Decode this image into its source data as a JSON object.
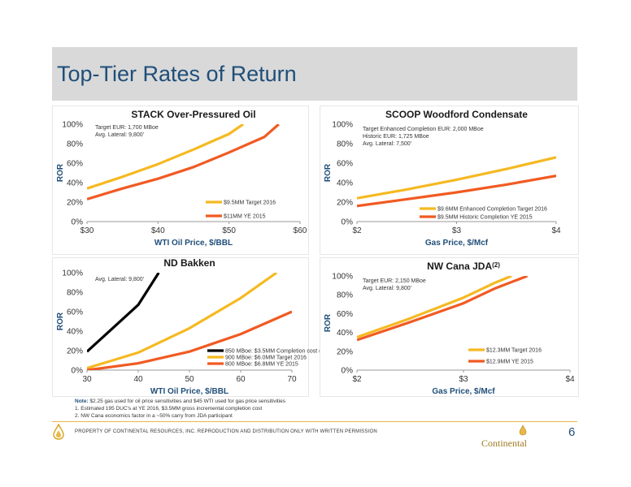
{
  "page": {
    "title": "Top-Tier Rates of Return",
    "page_number": "6",
    "property_notice": "PROPERTY OF CONTINENTAL RESOURCES, INC. REPRODUCTION AND DISTRIBUTION ONLY WITH WRITTEN PERMISSION",
    "logo_text": "Continental"
  },
  "footnotes": {
    "note_label": "Note:",
    "note_text": " $2.25 gas used for oil price sensitivities and $45 WTI used for gas price sensitivities",
    "items": [
      "1. Estimated 195 DUC's at YE 2016, $3.5MM gross incremental completion cost",
      "2. NW Cana economics factor in a ~50% carry from JDA participant"
    ]
  },
  "colors": {
    "gold": "#f5b921",
    "orange": "#f15a22",
    "black": "#000000",
    "title": "#1f4e79"
  },
  "chart_data": [
    {
      "type": "line",
      "title": "STACK Over-Pressured Oil",
      "xlabel": "WTI Oil Price, $/BBL",
      "ylabel": "ROR",
      "xlim": [
        30,
        60
      ],
      "ylim": [
        0,
        100
      ],
      "x_ticks": [
        "$30",
        "$40",
        "$50",
        "$60"
      ],
      "y_ticks": [
        "0%",
        "20%",
        "40%",
        "60%",
        "80%",
        "100%"
      ],
      "notes": [
        "Target EUR: 1,700 MBoe",
        "Avg. Lateral: 9,800'"
      ],
      "legend": [
        "$9.5MM Target 2016",
        "$11MM YE 2015"
      ],
      "series": [
        {
          "name": "$9.5MM Target 2016",
          "color": "#f5b921",
          "x": [
            30,
            35,
            40,
            45,
            50,
            52
          ],
          "y": [
            34,
            46,
            59,
            74,
            90,
            100
          ]
        },
        {
          "name": "$11MM YE 2015",
          "color": "#f15a22",
          "x": [
            30,
            35,
            40,
            45,
            50,
            55,
            57
          ],
          "y": [
            23,
            34,
            44,
            56,
            71,
            87,
            100
          ]
        }
      ]
    },
    {
      "type": "line",
      "title": "SCOOP Woodford Condensate",
      "xlabel": "Gas Price, $/Mcf",
      "ylabel": "ROR",
      "xlim": [
        2,
        4
      ],
      "ylim": [
        0,
        100
      ],
      "x_ticks": [
        "$2",
        "$3",
        "$4"
      ],
      "y_ticks": [
        "0%",
        "20%",
        "40%",
        "60%",
        "80%",
        "100%"
      ],
      "notes": [
        "Target Enhanced Completion EUR: 2,000 MBoe",
        "Historic EUR: 1,725 MBoe",
        "Avg. Lateral: 7,500'"
      ],
      "legend": [
        "$9.6MM Enhanced Completion Target 2016",
        "$9.5MM Historic Completion YE 2015"
      ],
      "series": [
        {
          "name": "$9.6MM Enhanced Completion Target 2016",
          "color": "#f5b921",
          "x": [
            2,
            2.5,
            3,
            3.5,
            4
          ],
          "y": [
            24,
            33,
            43,
            54,
            66
          ]
        },
        {
          "name": "$9.5MM Historic Completion YE 2015",
          "color": "#f15a22",
          "x": [
            2,
            2.5,
            3,
            3.5,
            4
          ],
          "y": [
            16,
            23,
            30,
            38,
            47
          ]
        }
      ]
    },
    {
      "type": "line",
      "title": "ND Bakken",
      "xlabel": "WTI Oil Price, $/BBL",
      "ylabel": "ROR",
      "xlim": [
        30,
        70
      ],
      "ylim": [
        0,
        100
      ],
      "x_ticks": [
        "30",
        "40",
        "50",
        "60",
        "70"
      ],
      "y_ticks": [
        "0%",
        "20%",
        "40%",
        "60%",
        "80%",
        "100%"
      ],
      "notes": [
        "Avg. Lateral: 9,800'"
      ],
      "legend": [
        "850 MBoe: $3.5MM Completion cost (1)",
        "900 MBoe: $6.0MM Target 2016",
        "800 MBoe: $6.8MM YE 2015"
      ],
      "series": [
        {
          "name": "850 MBoe: $3.5MM Completion cost (1)",
          "color": "#000000",
          "x": [
            30,
            40,
            44
          ],
          "y": [
            19,
            67,
            100
          ]
        },
        {
          "name": "900 MBoe: $6.0MM Target 2016",
          "color": "#f5b921",
          "x": [
            30,
            40,
            50,
            60,
            67
          ],
          "y": [
            2,
            18,
            43,
            74,
            100
          ]
        },
        {
          "name": "800 MBoe: $6.8MM YE 2015",
          "color": "#f15a22",
          "x": [
            30,
            40,
            50,
            60,
            70
          ],
          "y": [
            0,
            7,
            19,
            37,
            60
          ]
        }
      ]
    },
    {
      "type": "line",
      "title": "NW Cana JDA",
      "title_sup": "(2)",
      "xlabel": "Gas Price, $/Mcf",
      "ylabel": "ROR",
      "xlim": [
        2,
        4
      ],
      "ylim": [
        0,
        100
      ],
      "x_ticks": [
        "$2",
        "$3",
        "$4"
      ],
      "y_ticks": [
        "0%",
        "20%",
        "40%",
        "60%",
        "80%",
        "100%"
      ],
      "notes": [
        "Target EUR: 2,150 MBoe",
        "Avg. Lateral: 9,800'"
      ],
      "legend": [
        "$12.3MM Target 2016",
        "$12.9MM YE 2015"
      ],
      "series": [
        {
          "name": "$12.3MM Target 2016",
          "color": "#f5b921",
          "x": [
            2,
            2.5,
            3,
            3.3,
            3.45
          ],
          "y": [
            35,
            55,
            77,
            93,
            100
          ]
        },
        {
          "name": "$12.9MM YE 2015",
          "color": "#f15a22",
          "x": [
            2,
            2.5,
            3,
            3.3,
            3.6
          ],
          "y": [
            32,
            51,
            71,
            87,
            100
          ]
        }
      ]
    }
  ]
}
